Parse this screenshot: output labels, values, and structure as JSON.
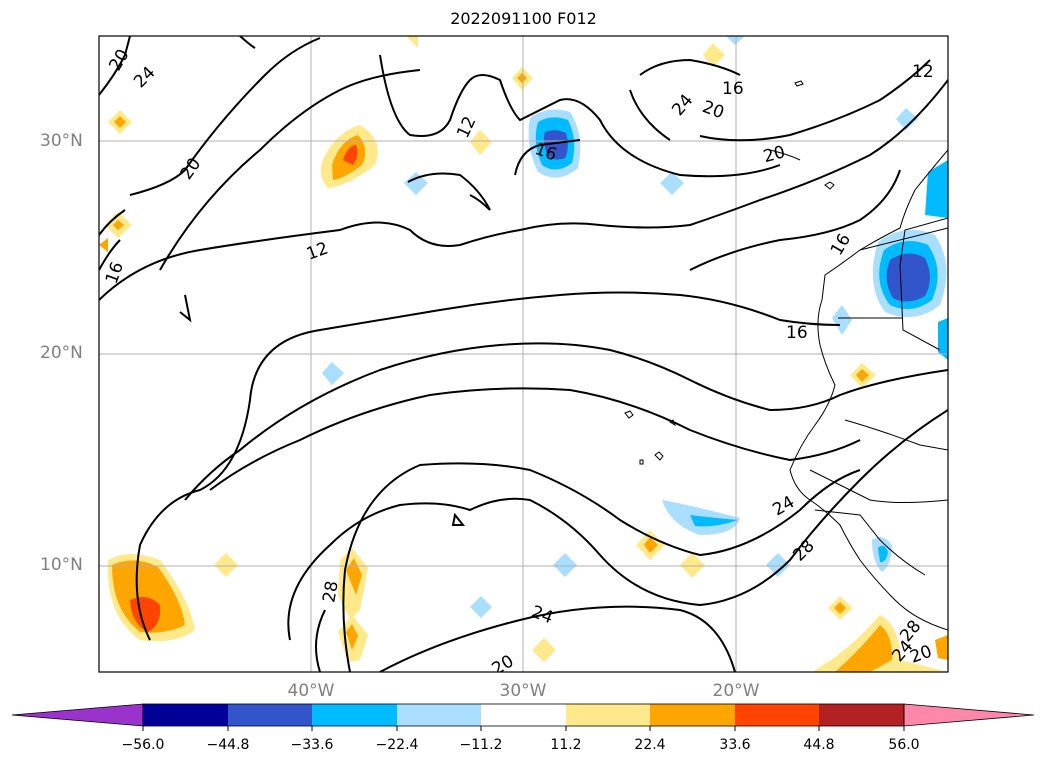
{
  "title": "2022091100 F012",
  "map": {
    "lat_labels": [
      "30°N",
      "20°N",
      "10°N"
    ],
    "lon_labels": [
      "40°W",
      "30°W",
      "20°W"
    ],
    "contour_labels": [
      "20",
      "24",
      "12",
      "20",
      "16",
      "12",
      "16",
      "24",
      "20",
      "16",
      "20",
      "12",
      "16",
      "16",
      "24",
      "28",
      "24",
      "28",
      "24",
      "28",
      "20",
      "20"
    ],
    "gridline_color": "#b0b0b0"
  },
  "colorbar": {
    "ticks": [
      "−56.0",
      "−44.8",
      "−33.6",
      "−22.4",
      "−11.2",
      "11.2",
      "22.4",
      "33.6",
      "44.8",
      "56.0"
    ],
    "colors": [
      "#9933cc",
      "#000099",
      "#3355cc",
      "#00bbff",
      "#aadeff",
      "#ffffff",
      "#ffe98a",
      "#ffa500",
      "#ff4400",
      "#b22222",
      "#ff88aa"
    ]
  }
}
